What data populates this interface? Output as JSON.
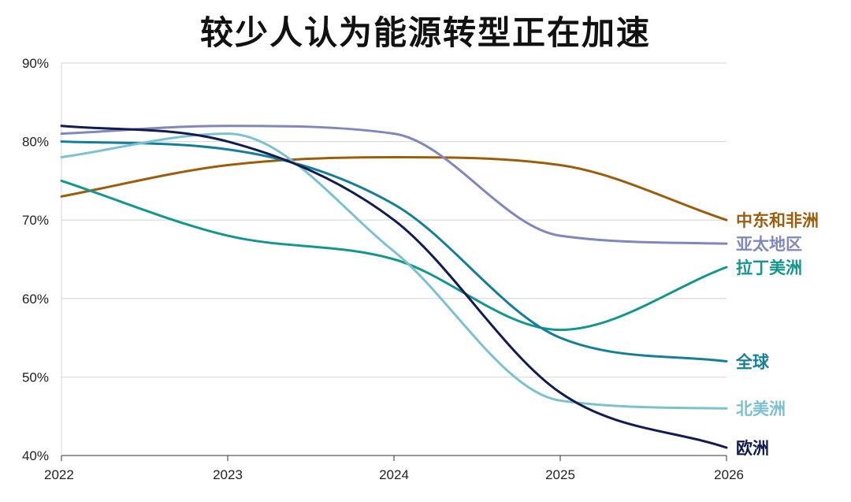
{
  "chart_data": {
    "type": "line",
    "title": "较少人认为能源转型正在加速",
    "xlabel": "",
    "ylabel": "",
    "x": [
      2022,
      2023,
      2024,
      2025,
      2026
    ],
    "x_tick_labels": [
      "2022",
      "2023",
      "2024",
      "2025",
      "2026"
    ],
    "ylim": [
      40,
      90
    ],
    "y_ticks": [
      40,
      50,
      60,
      70,
      80,
      90
    ],
    "y_tick_labels": [
      "40%",
      "50%",
      "60%",
      "70%",
      "80%",
      "90%"
    ],
    "grid": true,
    "series": [
      {
        "name": "中东和非洲",
        "color": "#9c5d0c",
        "values": [
          73,
          77,
          78,
          77,
          70
        ]
      },
      {
        "name": "亚太地区",
        "color": "#7f87bd",
        "values": [
          81,
          82,
          81,
          68,
          67
        ]
      },
      {
        "name": "拉丁美洲",
        "color": "#12968e",
        "values": [
          75,
          68,
          65,
          56,
          64
        ]
      },
      {
        "name": "全球",
        "color": "#157f99",
        "values": [
          80,
          79,
          72,
          55,
          52
        ]
      },
      {
        "name": "北美洲",
        "color": "#7cc1d0",
        "values": [
          78,
          81,
          66,
          47,
          46
        ]
      },
      {
        "name": "欧洲",
        "color": "#121c52",
        "values": [
          82,
          80,
          70,
          48,
          41
        ]
      }
    ]
  }
}
